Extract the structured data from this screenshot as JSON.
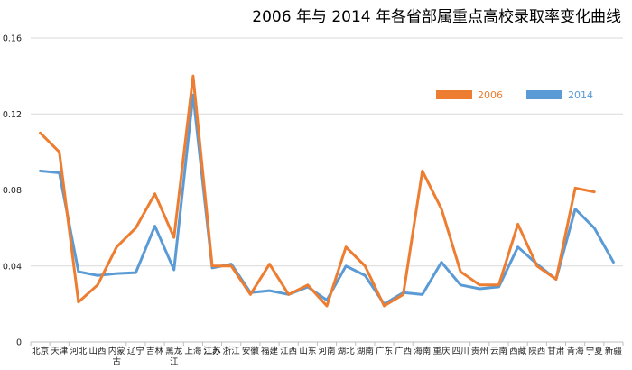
{
  "chart_data": {
    "type": "line",
    "title": "2006 年与 2014 年各省部属重点高校录取率变化曲线",
    "xlabel": "",
    "ylabel": "",
    "ylim": [
      0,
      0.16
    ],
    "yticks": [
      "0",
      "0.04",
      "0.08",
      "0.12",
      "0.16"
    ],
    "ytick_values": [
      0,
      0.04,
      0.08,
      0.12,
      0.16
    ],
    "grid": "horizontal",
    "legend_position": "upper-right",
    "bold_category": "江苏",
    "categories": [
      "北京",
      "天津",
      "河北",
      "山西",
      "内蒙古",
      "辽宁",
      "吉林",
      "黑龙江",
      "上海",
      "江苏",
      "浙江",
      "安徽",
      "福建",
      "江西",
      "山东",
      "河南",
      "湖北",
      "湖南",
      "广东",
      "广西",
      "海南",
      "重庆",
      "四川",
      "贵州",
      "云南",
      "西藏",
      "陕西",
      "甘肃",
      "青海",
      "宁夏",
      "新疆"
    ],
    "series": [
      {
        "name": "2006",
        "color": "#ED7D31",
        "values": [
          0.11,
          0.1,
          0.021,
          0.03,
          0.05,
          0.06,
          0.078,
          0.055,
          0.14,
          0.04,
          0.04,
          0.025,
          0.041,
          0.025,
          0.03,
          0.019,
          0.05,
          0.04,
          0.019,
          0.025,
          0.09,
          0.07,
          0.037,
          0.03,
          0.03,
          0.062,
          0.04,
          0.033,
          0.081,
          0.079,
          null
        ]
      },
      {
        "name": "2014",
        "color": "#5B9BD5",
        "values": [
          0.09,
          0.089,
          0.037,
          0.035,
          0.036,
          0.0365,
          0.061,
          0.038,
          0.13,
          0.039,
          0.041,
          0.026,
          0.027,
          0.025,
          0.029,
          0.022,
          0.04,
          0.035,
          0.02,
          0.026,
          0.025,
          0.042,
          0.03,
          0.028,
          0.029,
          0.05,
          0.041,
          0.033,
          0.07,
          0.06,
          0.042
        ]
      }
    ]
  }
}
